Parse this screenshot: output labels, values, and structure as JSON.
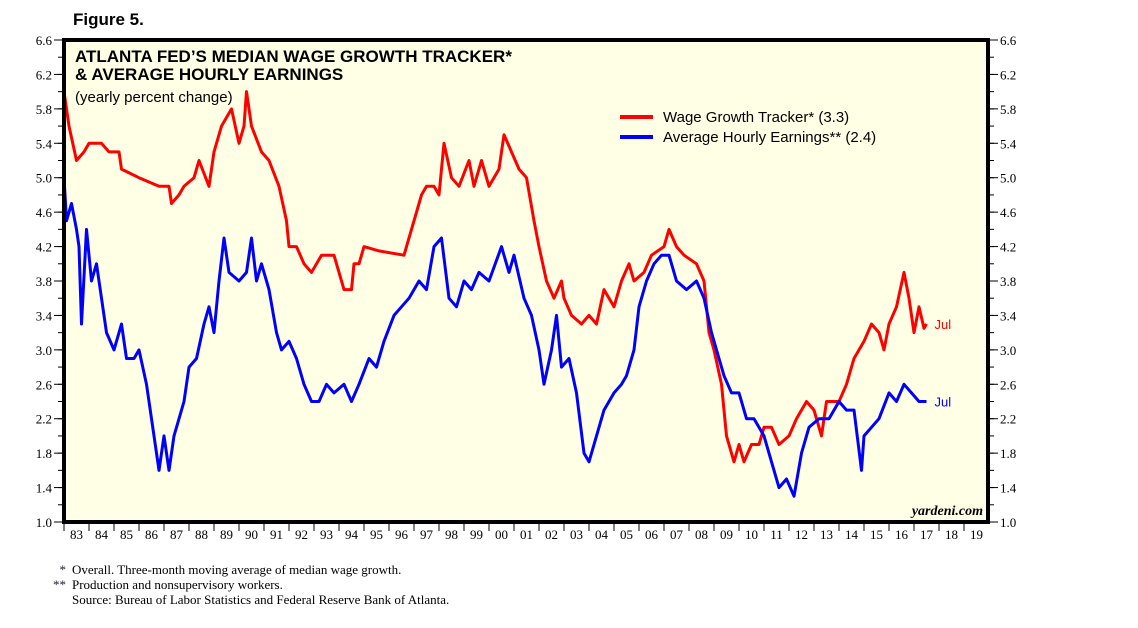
{
  "figure_label": "Figure 5.",
  "watermark": "yardeni.com",
  "footnotes": [
    {
      "mark": "*",
      "text": "Overall. Three-month moving average of median wage growth."
    },
    {
      "mark": "**",
      "text": "Production and nonsupervisory workers."
    },
    {
      "mark": "",
      "text": "Source: Bureau of Labor Statistics and Federal Reserve Bank of Atlanta."
    }
  ],
  "chart_data": {
    "type": "line",
    "title": [
      "ATLANTA FED’S MEDIAN WAGE GROWTH TRACKER*",
      "& AVERAGE HOURLY EARNINGS"
    ],
    "subtitle": "(yearly percent change)",
    "xlabel": "",
    "ylabel": "",
    "xlim": [
      1983,
      2020
    ],
    "ylim": [
      1.0,
      6.6
    ],
    "yticks": [
      "1.0",
      "1.4",
      "1.8",
      "2.2",
      "2.6",
      "3.0",
      "3.4",
      "3.8",
      "4.2",
      "4.6",
      "5.0",
      "5.4",
      "5.8",
      "6.2",
      "6.6"
    ],
    "xtick_labels": [
      "83",
      "84",
      "85",
      "86",
      "87",
      "88",
      "89",
      "90",
      "91",
      "92",
      "93",
      "94",
      "95",
      "96",
      "97",
      "98",
      "99",
      "00",
      "01",
      "02",
      "03",
      "04",
      "05",
      "06",
      "07",
      "08",
      "09",
      "10",
      "11",
      "12",
      "13",
      "14",
      "15",
      "16",
      "17",
      "18",
      "19"
    ],
    "grid": false,
    "legend_position": "top-right",
    "background": "#ffffe6",
    "series": [
      {
        "name": "Wage Growth Tracker* (3.3)",
        "color": "#ff0000",
        "end_label": "Jul",
        "points": [
          [
            1983.0,
            6.0
          ],
          [
            1983.2,
            5.6
          ],
          [
            1983.5,
            5.2
          ],
          [
            1983.8,
            5.3
          ],
          [
            1984.0,
            5.4
          ],
          [
            1984.5,
            5.4
          ],
          [
            1984.8,
            5.3
          ],
          [
            1985.2,
            5.3
          ],
          [
            1985.3,
            5.1
          ],
          [
            1986.0,
            5.0
          ],
          [
            1986.8,
            4.9
          ],
          [
            1987.2,
            4.9
          ],
          [
            1987.3,
            4.7
          ],
          [
            1987.6,
            4.8
          ],
          [
            1987.8,
            4.9
          ],
          [
            1988.2,
            5.0
          ],
          [
            1988.4,
            5.2
          ],
          [
            1988.8,
            4.9
          ],
          [
            1989.0,
            5.3
          ],
          [
            1989.3,
            5.6
          ],
          [
            1989.7,
            5.8
          ],
          [
            1990.0,
            5.4
          ],
          [
            1990.2,
            5.6
          ],
          [
            1990.3,
            6.0
          ],
          [
            1990.5,
            5.6
          ],
          [
            1990.9,
            5.3
          ],
          [
            1991.2,
            5.2
          ],
          [
            1991.6,
            4.9
          ],
          [
            1991.9,
            4.5
          ],
          [
            1992.0,
            4.2
          ],
          [
            1992.3,
            4.2
          ],
          [
            1992.6,
            4.0
          ],
          [
            1992.9,
            3.9
          ],
          [
            1993.3,
            4.1
          ],
          [
            1993.8,
            4.1
          ],
          [
            1994.0,
            3.9
          ],
          [
            1994.2,
            3.7
          ],
          [
            1994.5,
            3.7
          ],
          [
            1994.6,
            4.0
          ],
          [
            1994.8,
            4.0
          ],
          [
            1995.0,
            4.2
          ],
          [
            1995.6,
            4.15
          ],
          [
            1996.6,
            4.1
          ],
          [
            1997.0,
            4.5
          ],
          [
            1997.3,
            4.8
          ],
          [
            1997.5,
            4.9
          ],
          [
            1997.8,
            4.9
          ],
          [
            1998.0,
            4.8
          ],
          [
            1998.2,
            5.4
          ],
          [
            1998.5,
            5.0
          ],
          [
            1998.8,
            4.9
          ],
          [
            1999.2,
            5.2
          ],
          [
            1999.4,
            4.9
          ],
          [
            1999.7,
            5.2
          ],
          [
            2000.0,
            4.9
          ],
          [
            2000.4,
            5.1
          ],
          [
            2000.6,
            5.5
          ],
          [
            2000.9,
            5.3
          ],
          [
            2001.2,
            5.1
          ],
          [
            2001.5,
            5.0
          ],
          [
            2001.8,
            4.5
          ],
          [
            2002.0,
            4.2
          ],
          [
            2002.3,
            3.8
          ],
          [
            2002.6,
            3.6
          ],
          [
            2002.9,
            3.8
          ],
          [
            2003.0,
            3.6
          ],
          [
            2003.3,
            3.4
          ],
          [
            2003.7,
            3.3
          ],
          [
            2004.0,
            3.4
          ],
          [
            2004.3,
            3.3
          ],
          [
            2004.6,
            3.7
          ],
          [
            2005.0,
            3.5
          ],
          [
            2005.3,
            3.8
          ],
          [
            2005.6,
            4.0
          ],
          [
            2005.8,
            3.8
          ],
          [
            2006.2,
            3.9
          ],
          [
            2006.5,
            4.1
          ],
          [
            2007.0,
            4.2
          ],
          [
            2007.2,
            4.4
          ],
          [
            2007.5,
            4.2
          ],
          [
            2007.8,
            4.1
          ],
          [
            2008.3,
            4.0
          ],
          [
            2008.6,
            3.8
          ],
          [
            2008.8,
            3.2
          ],
          [
            2009.0,
            3.0
          ],
          [
            2009.3,
            2.6
          ],
          [
            2009.5,
            2.0
          ],
          [
            2009.8,
            1.7
          ],
          [
            2010.0,
            1.9
          ],
          [
            2010.2,
            1.7
          ],
          [
            2010.5,
            1.9
          ],
          [
            2010.8,
            1.9
          ],
          [
            2011.0,
            2.1
          ],
          [
            2011.3,
            2.1
          ],
          [
            2011.6,
            1.9
          ],
          [
            2012.0,
            2.0
          ],
          [
            2012.3,
            2.2
          ],
          [
            2012.7,
            2.4
          ],
          [
            2013.0,
            2.3
          ],
          [
            2013.3,
            2.0
          ],
          [
            2013.5,
            2.4
          ],
          [
            2014.0,
            2.4
          ],
          [
            2014.3,
            2.6
          ],
          [
            2014.6,
            2.9
          ],
          [
            2015.0,
            3.1
          ],
          [
            2015.3,
            3.3
          ],
          [
            2015.6,
            3.2
          ],
          [
            2015.8,
            3.0
          ],
          [
            2016.0,
            3.3
          ],
          [
            2016.3,
            3.5
          ],
          [
            2016.6,
            3.9
          ],
          [
            2016.8,
            3.6
          ],
          [
            2017.0,
            3.2
          ],
          [
            2017.2,
            3.5
          ],
          [
            2017.4,
            3.25
          ],
          [
            2017.5,
            3.3
          ]
        ]
      },
      {
        "name": "Average Hourly Earnings** (2.4)",
        "color": "#0000ff",
        "end_label": "Jul",
        "points": [
          [
            1983.0,
            5.0
          ],
          [
            1983.1,
            4.5
          ],
          [
            1983.3,
            4.7
          ],
          [
            1983.5,
            4.4
          ],
          [
            1983.6,
            4.2
          ],
          [
            1983.7,
            3.3
          ],
          [
            1983.9,
            4.4
          ],
          [
            1984.1,
            3.8
          ],
          [
            1984.3,
            4.0
          ],
          [
            1984.5,
            3.6
          ],
          [
            1984.7,
            3.2
          ],
          [
            1985.0,
            3.0
          ],
          [
            1985.3,
            3.3
          ],
          [
            1985.5,
            2.9
          ],
          [
            1985.8,
            2.9
          ],
          [
            1986.0,
            3.0
          ],
          [
            1986.3,
            2.6
          ],
          [
            1986.6,
            2.0
          ],
          [
            1986.8,
            1.6
          ],
          [
            1987.0,
            2.0
          ],
          [
            1987.2,
            1.6
          ],
          [
            1987.4,
            2.0
          ],
          [
            1987.8,
            2.4
          ],
          [
            1988.0,
            2.8
          ],
          [
            1988.3,
            2.9
          ],
          [
            1988.6,
            3.3
          ],
          [
            1988.8,
            3.5
          ],
          [
            1989.0,
            3.2
          ],
          [
            1989.2,
            3.8
          ],
          [
            1989.4,
            4.3
          ],
          [
            1989.6,
            3.9
          ],
          [
            1990.0,
            3.8
          ],
          [
            1990.3,
            3.9
          ],
          [
            1990.5,
            4.3
          ],
          [
            1990.7,
            3.8
          ],
          [
            1990.9,
            4.0
          ],
          [
            1991.2,
            3.7
          ],
          [
            1991.5,
            3.2
          ],
          [
            1991.7,
            3.0
          ],
          [
            1992.0,
            3.1
          ],
          [
            1992.3,
            2.9
          ],
          [
            1992.6,
            2.6
          ],
          [
            1992.9,
            2.4
          ],
          [
            1993.2,
            2.4
          ],
          [
            1993.5,
            2.6
          ],
          [
            1993.8,
            2.5
          ],
          [
            1994.2,
            2.6
          ],
          [
            1994.5,
            2.4
          ],
          [
            1994.8,
            2.6
          ],
          [
            1995.2,
            2.9
          ],
          [
            1995.5,
            2.8
          ],
          [
            1995.8,
            3.1
          ],
          [
            1996.2,
            3.4
          ],
          [
            1996.5,
            3.5
          ],
          [
            1996.8,
            3.6
          ],
          [
            1997.2,
            3.8
          ],
          [
            1997.5,
            3.7
          ],
          [
            1997.8,
            4.2
          ],
          [
            1998.1,
            4.3
          ],
          [
            1998.4,
            3.6
          ],
          [
            1998.7,
            3.5
          ],
          [
            1999.0,
            3.8
          ],
          [
            1999.3,
            3.7
          ],
          [
            1999.6,
            3.9
          ],
          [
            2000.0,
            3.8
          ],
          [
            2000.5,
            4.2
          ],
          [
            2000.8,
            3.9
          ],
          [
            2001.0,
            4.1
          ],
          [
            2001.4,
            3.6
          ],
          [
            2001.7,
            3.4
          ],
          [
            2002.0,
            3.0
          ],
          [
            2002.2,
            2.6
          ],
          [
            2002.5,
            3.0
          ],
          [
            2002.7,
            3.4
          ],
          [
            2002.9,
            2.8
          ],
          [
            2003.2,
            2.9
          ],
          [
            2003.5,
            2.5
          ],
          [
            2003.8,
            1.8
          ],
          [
            2004.0,
            1.7
          ],
          [
            2004.3,
            2.0
          ],
          [
            2004.6,
            2.3
          ],
          [
            2005.0,
            2.5
          ],
          [
            2005.3,
            2.6
          ],
          [
            2005.5,
            2.7
          ],
          [
            2005.8,
            3.0
          ],
          [
            2006.0,
            3.5
          ],
          [
            2006.3,
            3.8
          ],
          [
            2006.6,
            4.0
          ],
          [
            2006.9,
            4.1
          ],
          [
            2007.2,
            4.1
          ],
          [
            2007.5,
            3.8
          ],
          [
            2007.9,
            3.7
          ],
          [
            2008.3,
            3.8
          ],
          [
            2008.6,
            3.6
          ],
          [
            2008.9,
            3.2
          ],
          [
            2009.2,
            2.9
          ],
          [
            2009.4,
            2.7
          ],
          [
            2009.7,
            2.5
          ],
          [
            2010.0,
            2.5
          ],
          [
            2010.3,
            2.2
          ],
          [
            2010.6,
            2.2
          ],
          [
            2011.0,
            2.0
          ],
          [
            2011.3,
            1.7
          ],
          [
            2011.6,
            1.4
          ],
          [
            2011.9,
            1.5
          ],
          [
            2012.2,
            1.3
          ],
          [
            2012.5,
            1.8
          ],
          [
            2012.8,
            2.1
          ],
          [
            2013.2,
            2.2
          ],
          [
            2013.6,
            2.2
          ],
          [
            2014.0,
            2.4
          ],
          [
            2014.3,
            2.3
          ],
          [
            2014.6,
            2.3
          ],
          [
            2014.9,
            1.6
          ],
          [
            2015.0,
            2.0
          ],
          [
            2015.3,
            2.1
          ],
          [
            2015.6,
            2.2
          ],
          [
            2016.0,
            2.5
          ],
          [
            2016.3,
            2.4
          ],
          [
            2016.6,
            2.6
          ],
          [
            2016.9,
            2.5
          ],
          [
            2017.2,
            2.4
          ],
          [
            2017.5,
            2.4
          ]
        ]
      }
    ]
  }
}
